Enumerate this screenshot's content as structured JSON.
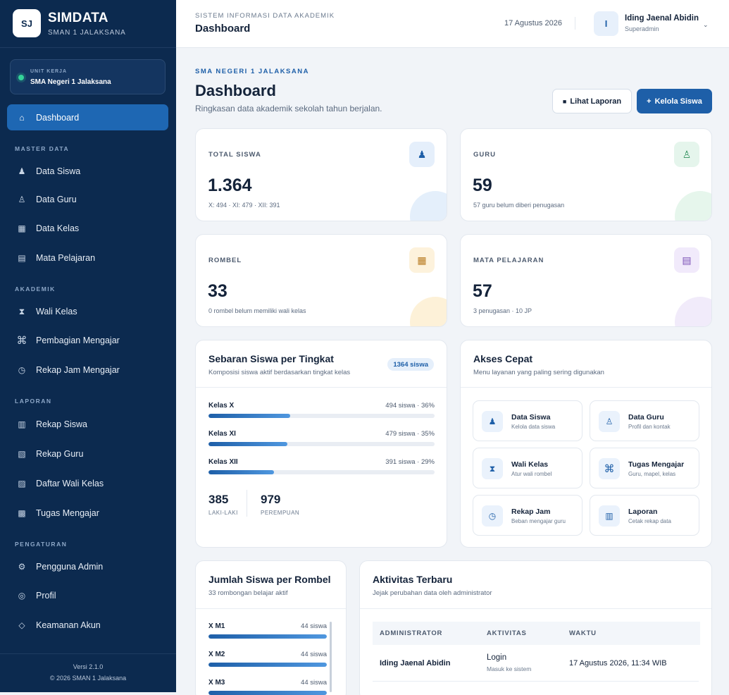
{
  "brand": {
    "logo": "SJ",
    "name": "SIMDATA",
    "sub": "SMAN 1 JALAKSANA"
  },
  "unit": {
    "label": "UNIT KERJA",
    "value": "SMA Negeri 1 Jalaksana"
  },
  "nav": {
    "dashboard": {
      "icon": "home-icon",
      "label": "Dashboard"
    },
    "sections": {
      "master": "MASTER DATA",
      "akademik": "AKADEMIK",
      "laporan": "LAPORAN",
      "pengaturan": "PENGATURAN"
    },
    "items": [
      {
        "icon": "user-icon",
        "label": "Data Siswa"
      },
      {
        "icon": "teacher-icon",
        "label": "Data Guru"
      },
      {
        "icon": "grid-icon",
        "label": "Data Kelas"
      },
      {
        "icon": "list-icon",
        "label": "Mata Pelajaran"
      },
      {
        "icon": "hourglass-icon",
        "label": "Wali Kelas"
      },
      {
        "icon": "command-icon",
        "label": "Pembagian Mengajar"
      },
      {
        "icon": "clock-icon",
        "label": "Rekap Jam Mengajar"
      },
      {
        "icon": "table-icon",
        "label": "Rekap Siswa"
      },
      {
        "icon": "hatch-icon",
        "label": "Rekap Guru"
      },
      {
        "icon": "hatch-box-icon",
        "label": "Daftar Wali Kelas"
      },
      {
        "icon": "pattern-icon",
        "label": "Tugas Mengajar"
      },
      {
        "icon": "gear-icon",
        "label": "Pengguna Admin"
      },
      {
        "icon": "profile-icon",
        "label": "Profil"
      },
      {
        "icon": "diamond-icon",
        "label": "Keamanan Akun"
      }
    ]
  },
  "footer": {
    "version": "Versi 2.1.0",
    "copyright": "© 2026 SMAN 1 Jalaksana"
  },
  "topbar": {
    "subtitle": "SISTEM INFORMASI DATA AKADEMIK",
    "title": "Dashboard",
    "date": "17 Agustus 2026",
    "user_initial": "I",
    "user_name": "Iding Jaenal Abidin",
    "user_role": "Superadmin",
    "chevron": "⌄"
  },
  "header": {
    "eyebrow": "SMA NEGERI 1 JALAKSANA",
    "title": "Dashboard",
    "lead": "Ringkasan data akademik sekolah tahun berjalan.",
    "report_button": "Lihat Laporan",
    "manage_button": "Kelola Siswa"
  },
  "stats": [
    {
      "label": "TOTAL SISWA",
      "value": "1.364",
      "note": "X: 494 · XI: 479 · XII: 391",
      "icon": "user-icon",
      "color": "#1e5fa8",
      "bg": "#e5effb",
      "blob": "#e4effb"
    },
    {
      "label": "GURU",
      "value": "59",
      "note": "57 guru belum diberi penugasan",
      "icon": "teacher-icon",
      "color": "#2f8f5b",
      "bg": "#e5f5ec",
      "blob": "#e6f6ec"
    },
    {
      "label": "ROMBEL",
      "value": "33",
      "note": "0 rombel belum memiliki wali kelas",
      "icon": "grid-icon",
      "color": "#b7791f",
      "bg": "#fdf2dc",
      "blob": "#fdf1d8"
    },
    {
      "label": "MATA PELAJARAN",
      "value": "57",
      "note": "3 penugasan · 10 JP",
      "icon": "list-icon",
      "color": "#7a4fb5",
      "bg": "#f1eafb",
      "blob": "#f1ebfa"
    }
  ],
  "sebaran": {
    "title": "Sebaran Siswa per Tingkat",
    "sub": "Komposisi siswa aktif berdasarkan tingkat kelas",
    "badge": "1364 siswa",
    "rows": [
      {
        "label": "Kelas X",
        "value": "494 siswa · 36%",
        "pct": 36
      },
      {
        "label": "Kelas XI",
        "value": "479 siswa · 35%",
        "pct": 35
      },
      {
        "label": "Kelas XII",
        "value": "391 siswa · 29%",
        "pct": 29
      }
    ],
    "male": {
      "value": "385",
      "label": "LAKI-LAKI"
    },
    "female": {
      "value": "979",
      "label": "PEREMPUAN"
    }
  },
  "akses": {
    "title": "Akses Cepat",
    "sub": "Menu layanan yang paling sering digunakan",
    "tiles": [
      {
        "icon": "user-icon",
        "title": "Data Siswa",
        "sub": "Kelola data siswa"
      },
      {
        "icon": "teacher-icon",
        "title": "Data Guru",
        "sub": "Profil dan kontak"
      },
      {
        "icon": "hourglass-icon",
        "title": "Wali Kelas",
        "sub": "Atur wali rombel"
      },
      {
        "icon": "command-icon",
        "title": "Tugas Mengajar",
        "sub": "Guru, mapel, kelas"
      },
      {
        "icon": "clock-icon",
        "title": "Rekap Jam",
        "sub": "Beban mengajar guru"
      },
      {
        "icon": "table-icon",
        "title": "Laporan",
        "sub": "Cetak rekap data"
      }
    ]
  },
  "rombel": {
    "title": "Jumlah Siswa per Rombel",
    "sub": "33 rombongan belajar aktif",
    "rows": [
      {
        "label": "X M1",
        "value": "44 siswa",
        "pct": 100
      },
      {
        "label": "X M2",
        "value": "44 siswa",
        "pct": 100
      },
      {
        "label": "X M3",
        "value": "44 siswa",
        "pct": 100
      }
    ]
  },
  "aktivitas": {
    "title": "Aktivitas Terbaru",
    "sub": "Jejak perubahan data oleh administrator",
    "columns": [
      "ADMINISTRATOR",
      "AKTIVITAS",
      "WAKTU"
    ],
    "rows": [
      {
        "admin": "Iding Jaenal Abidin",
        "activity": "Login",
        "detail": "Masuk ke sistem",
        "time": "17 Agustus 2026, 11:34 WIB"
      }
    ]
  }
}
